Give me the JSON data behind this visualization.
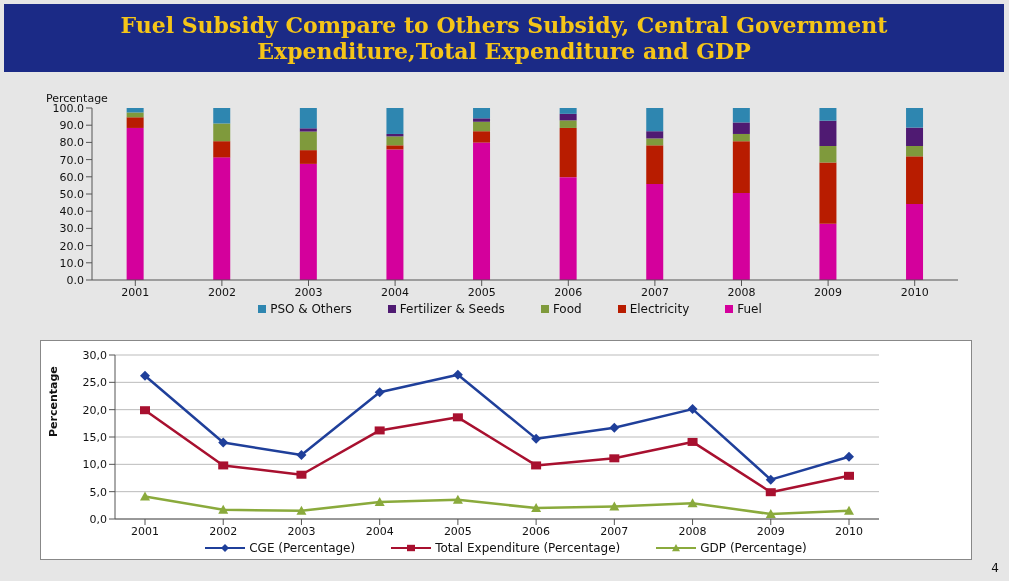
{
  "chart_data": [
    {
      "type": "bar",
      "title": "Fuel Subsidy Compare to Others Subsidy, Central Government Expenditure,Total Expenditure and GDP",
      "ylabel": "Percentage",
      "stacked": true,
      "legend": "bottom",
      "categories": [
        "2001",
        "2002",
        "2003",
        "2004",
        "2005",
        "2006",
        "2007",
        "2008",
        "2009",
        "2010"
      ],
      "ylim": [
        0,
        100
      ],
      "yticks": [
        {
          "value": 0,
          "label": "0.0"
        },
        {
          "value": 10,
          "label": "10.0"
        },
        {
          "value": 20,
          "label": "20.0"
        },
        {
          "value": 30,
          "label": "30.0"
        },
        {
          "value": 40,
          "label": "40.0"
        },
        {
          "value": 50,
          "label": "50.0"
        },
        {
          "value": 60,
          "label": "60.0"
        },
        {
          "value": 70,
          "label": "70.0"
        },
        {
          "value": 80,
          "label": "80.0"
        },
        {
          "value": 90,
          "label": "90.0"
        },
        {
          "value": 100,
          "label": "100.0"
        }
      ],
      "series": [
        {
          "name": "Fuel",
          "color": "#d4009c",
          "values": [
            88.4,
            71.3,
            67.5,
            75.9,
            79.9,
            59.8,
            55.8,
            50.6,
            32.7,
            44.2
          ]
        },
        {
          "name": "Electricity",
          "color": "#b81c00",
          "values": [
            6.2,
            9.4,
            8.0,
            2.4,
            6.6,
            28.6,
            22.5,
            30.1,
            35.6,
            27.7
          ]
        },
        {
          "name": "Food",
          "color": "#7f9a3c",
          "values": [
            2.8,
            10.3,
            10.8,
            5.2,
            5.5,
            4.4,
            4.0,
            4.2,
            9.6,
            6.0
          ]
        },
        {
          "name": "Fertilizer & Seeds",
          "color": "#4f1a72",
          "values": [
            0,
            0,
            1.9,
            1.4,
            2.0,
            3.8,
            4.2,
            6.7,
            14.7,
            10.7
          ]
        },
        {
          "name": "PSO & Others",
          "color": "#2e86b0",
          "values": [
            2.6,
            9.0,
            11.8,
            15.1,
            6.0,
            3.4,
            13.5,
            8.4,
            7.4,
            11.4
          ]
        }
      ]
    },
    {
      "type": "line",
      "ylabel": "Percentage",
      "grid": "y",
      "legend": "bottom",
      "line_style": "solid",
      "categories": [
        "2001",
        "2002",
        "2003",
        "2004",
        "2005",
        "2006",
        "2007",
        "2008",
        "2009",
        "2010"
      ],
      "ylim": [
        0,
        30
      ],
      "yticks": [
        {
          "value": 0,
          "label": "0,0"
        },
        {
          "value": 5,
          "label": "5,0"
        },
        {
          "value": 10,
          "label": "10,0"
        },
        {
          "value": 15,
          "label": "15,0"
        },
        {
          "value": 20,
          "label": "20,0"
        },
        {
          "value": 25,
          "label": "25,0"
        },
        {
          "value": 30,
          "label": "30,0"
        }
      ],
      "annotations": [
        "4"
      ],
      "series": [
        {
          "name": "CGE (Percentage)",
          "color": "#1f3f9a",
          "marker": "diamond",
          "values": [
            26.2,
            14.0,
            11.7,
            23.2,
            26.4,
            14.7,
            16.7,
            20.1,
            7.2,
            11.4
          ]
        },
        {
          "name": "Total Expenditure (Percentage)",
          "color": "#a8102f",
          "marker": "square",
          "values": [
            19.9,
            9.8,
            8.1,
            16.2,
            18.6,
            9.8,
            11.1,
            14.1,
            4.9,
            7.9
          ]
        },
        {
          "name": "GDP (Percentage)",
          "color": "#8aaa3c",
          "marker": "triangle",
          "values": [
            4.1,
            1.7,
            1.5,
            3.1,
            3.5,
            2.0,
            2.3,
            2.9,
            0.9,
            1.5
          ]
        }
      ]
    }
  ]
}
